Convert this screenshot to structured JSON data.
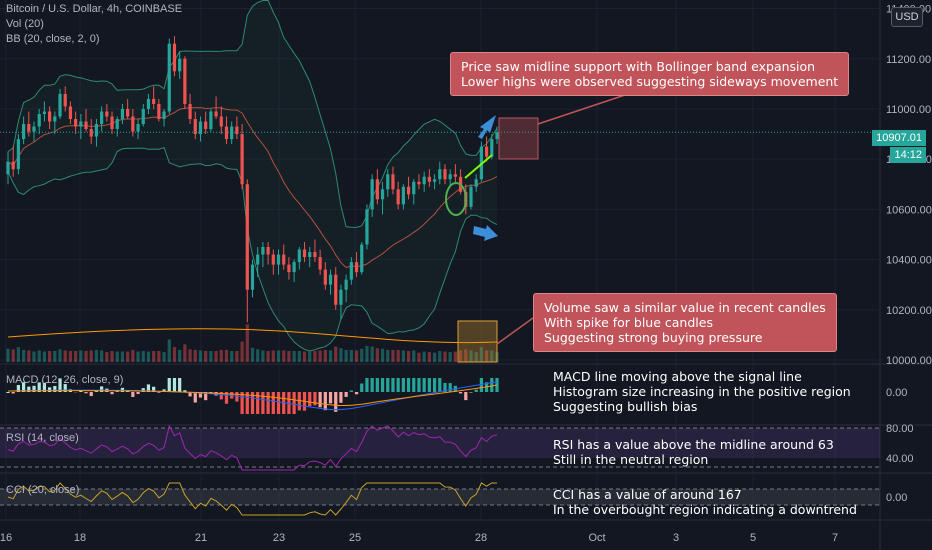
{
  "header": {
    "title": "Bitcoin / U.S. Dollar, 4h, COINBASE",
    "vol_label": "Vol (20)",
    "bb_label": "BB (20, close, 2, 0)",
    "currency": "USD"
  },
  "price_axis": {
    "ticks": [
      "11400.00",
      "11200.00",
      "11000.00",
      "10800.00",
      "10600.00",
      "10400.00",
      "10200.00",
      "10000.00"
    ],
    "last_price": "10907.01",
    "countdown": "14:12"
  },
  "annotations": {
    "price_callout": [
      "Price saw midline support with Bollinger band expansion",
      "Lower highs were observed suggesting sideways movement"
    ],
    "volume_callout": [
      "Volume saw a similar value in recent candles",
      "With spike for blue candles",
      "Suggesting strong buying pressure"
    ],
    "macd_note": [
      "MACD line moving above the signal line",
      "Histogram size increasing in the positive region",
      "Suggesting bullish bias"
    ],
    "rsi_note": [
      "RSI has a value above the midline around 63",
      "Still in the neutral region"
    ],
    "cci_note": [
      "CCI has a value of around 167",
      "In the overbought region indicating a downtrend"
    ]
  },
  "panes": {
    "macd": {
      "label": "MACD (12, 26, close, 9)",
      "ticks": [
        "0.00"
      ]
    },
    "rsi": {
      "label": "RSI (14, close)",
      "ticks": [
        "80.00",
        "40.00"
      ]
    },
    "cci": {
      "label": "CCI (20, close)",
      "ticks": [
        "0.00"
      ]
    }
  },
  "time_axis": {
    "labels": [
      "16",
      "18",
      "21",
      "23",
      "25",
      "28",
      "Oct",
      "3",
      "5",
      "7"
    ]
  },
  "colors": {
    "up": "#26a69a",
    "down": "#ef5350",
    "bb_band": "#2e8b6e",
    "bb_basis": "#b5503f",
    "macd": "#2962ff",
    "signal": "#ff9800",
    "rsi": "#9c27b0",
    "cci": "#c9a227",
    "callout": "#c0545a"
  },
  "chart_data": {
    "type": "candlestick",
    "title": "Bitcoin / U.S. Dollar, 4h, COINBASE",
    "x_labels": [
      "16",
      "18",
      "21",
      "23",
      "25",
      "28"
    ],
    "ylim": [
      10000,
      11450
    ],
    "ohlc": [
      [
        10740,
        10830,
        10700,
        10790
      ],
      [
        10790,
        10850,
        10730,
        10760
      ],
      [
        10760,
        10900,
        10740,
        10880
      ],
      [
        10880,
        10970,
        10860,
        10940
      ],
      [
        10940,
        10990,
        10890,
        10910
      ],
      [
        10910,
        10950,
        10870,
        10930
      ],
      [
        10930,
        11000,
        10900,
        10980
      ],
      [
        10980,
        11030,
        10950,
        10990
      ],
      [
        10990,
        11010,
        10920,
        10950
      ],
      [
        10950,
        10990,
        10900,
        10970
      ],
      [
        10970,
        11080,
        10960,
        11060
      ],
      [
        11060,
        11090,
        10990,
        11010
      ],
      [
        11010,
        11030,
        10940,
        10960
      ],
      [
        10960,
        10990,
        10900,
        10930
      ],
      [
        10930,
        10980,
        10880,
        10950
      ],
      [
        10950,
        11000,
        10910,
        10920
      ],
      [
        10920,
        10960,
        10860,
        10890
      ],
      [
        10890,
        10960,
        10850,
        10940
      ],
      [
        10940,
        11010,
        10910,
        10990
      ],
      [
        10990,
        11020,
        10950,
        10970
      ],
      [
        10970,
        10990,
        10900,
        10920
      ],
      [
        10920,
        10970,
        10890,
        10960
      ],
      [
        10960,
        11020,
        10940,
        11000
      ],
      [
        11000,
        11040,
        10960,
        10970
      ],
      [
        10970,
        11000,
        10890,
        10910
      ],
      [
        10910,
        10960,
        10880,
        10940
      ],
      [
        10940,
        11020,
        10930,
        11000
      ],
      [
        11000,
        11060,
        10980,
        11040
      ],
      [
        11040,
        11090,
        11000,
        11020
      ],
      [
        11020,
        11040,
        10950,
        10960
      ],
      [
        10960,
        11000,
        10930,
        10990
      ],
      [
        10990,
        11280,
        10980,
        11260
      ],
      [
        11260,
        11290,
        11130,
        11150
      ],
      [
        11150,
        11230,
        11120,
        11200
      ],
      [
        11200,
        11210,
        11000,
        11020
      ],
      [
        11020,
        11060,
        10940,
        10960
      ],
      [
        10960,
        10990,
        10880,
        10900
      ],
      [
        10900,
        10970,
        10870,
        10950
      ],
      [
        10950,
        10990,
        10900,
        10920
      ],
      [
        10920,
        11000,
        10910,
        10990
      ],
      [
        10990,
        11050,
        10960,
        10970
      ],
      [
        10970,
        11010,
        10900,
        10930
      ],
      [
        10930,
        10970,
        10860,
        10880
      ],
      [
        10880,
        10950,
        10860,
        10930
      ],
      [
        10930,
        10970,
        10880,
        10900
      ],
      [
        10900,
        10940,
        10680,
        10700
      ],
      [
        10700,
        10720,
        10150,
        10280
      ],
      [
        10280,
        10400,
        10250,
        10380
      ],
      [
        10380,
        10450,
        10330,
        10420
      ],
      [
        10420,
        10470,
        10370,
        10450
      ],
      [
        10450,
        10470,
        10380,
        10420
      ],
      [
        10420,
        10440,
        10340,
        10380
      ],
      [
        10380,
        10440,
        10340,
        10420
      ],
      [
        10420,
        10460,
        10360,
        10380
      ],
      [
        10380,
        10410,
        10320,
        10350
      ],
      [
        10350,
        10400,
        10310,
        10390
      ],
      [
        10390,
        10450,
        10360,
        10440
      ],
      [
        10440,
        10470,
        10390,
        10410
      ],
      [
        10410,
        10450,
        10370,
        10430
      ],
      [
        10430,
        10480,
        10390,
        10410
      ],
      [
        10410,
        10440,
        10340,
        10360
      ],
      [
        10360,
        10390,
        10280,
        10300
      ],
      [
        10300,
        10360,
        10260,
        10340
      ],
      [
        10340,
        10370,
        10200,
        10220
      ],
      [
        10220,
        10300,
        10160,
        10280
      ],
      [
        10280,
        10340,
        10230,
        10320
      ],
      [
        10320,
        10410,
        10300,
        10390
      ],
      [
        10390,
        10430,
        10330,
        10350
      ],
      [
        10350,
        10470,
        10340,
        10460
      ],
      [
        10460,
        10620,
        10440,
        10600
      ],
      [
        10600,
        10740,
        10570,
        10720
      ],
      [
        10720,
        10760,
        10620,
        10640
      ],
      [
        10640,
        10710,
        10580,
        10680
      ],
      [
        10680,
        10760,
        10650,
        10740
      ],
      [
        10740,
        10770,
        10660,
        10680
      ],
      [
        10680,
        10710,
        10600,
        10620
      ],
      [
        10620,
        10700,
        10600,
        10690
      ],
      [
        10690,
        10730,
        10640,
        10660
      ],
      [
        10660,
        10720,
        10620,
        10710
      ],
      [
        10710,
        10740,
        10680,
        10700
      ],
      [
        10700,
        10750,
        10670,
        10730
      ],
      [
        10730,
        10760,
        10690,
        10710
      ],
      [
        10710,
        10740,
        10680,
        10720
      ],
      [
        10720,
        10790,
        10700,
        10760
      ],
      [
        10760,
        10780,
        10700,
        10720
      ],
      [
        10720,
        10760,
        10690,
        10740
      ],
      [
        10740,
        10780,
        10700,
        10730
      ],
      [
        10730,
        10760,
        10660,
        10670
      ],
      [
        10670,
        10700,
        10580,
        10610
      ],
      [
        10610,
        10700,
        10600,
        10690
      ],
      [
        10690,
        10740,
        10670,
        10720
      ],
      [
        10720,
        10870,
        10710,
        10850
      ],
      [
        10850,
        10890,
        10790,
        10810
      ],
      [
        10810,
        10900,
        10800,
        10880
      ],
      [
        10880,
        10930,
        10860,
        10907.01
      ]
    ]
  }
}
